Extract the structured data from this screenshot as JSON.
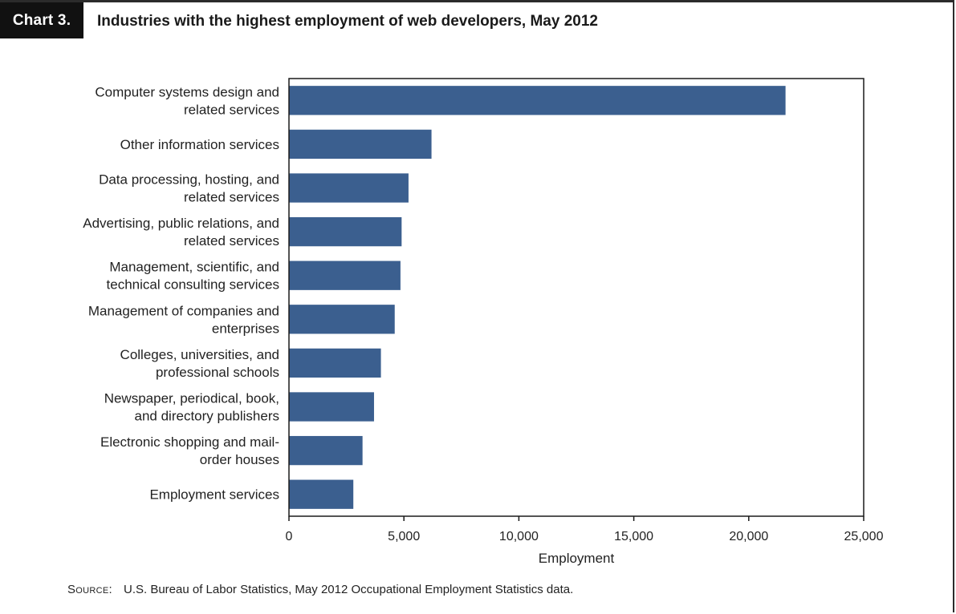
{
  "header": {
    "tag": "Chart 3.",
    "title": "Industries with the highest employment of web developers, May 2012"
  },
  "source": {
    "key": "Source:",
    "text": "U.S. Bureau of Labor Statistics, May 2012 Occupational Employment Statistics data."
  },
  "colors": {
    "bar": "#3b5f8f",
    "axis": "#1a1a1a"
  },
  "chart_data": {
    "type": "bar",
    "orientation": "horizontal",
    "title": "Industries with the highest employment of web developers, May 2012",
    "xlabel": "Employment",
    "ylabel": "",
    "xlim": [
      0,
      25000
    ],
    "xticks": [
      0,
      5000,
      10000,
      15000,
      20000,
      25000
    ],
    "xtick_labels": [
      "0",
      "5,000",
      "10,000",
      "15,000",
      "20,000",
      "25,000"
    ],
    "grid": false,
    "legend": "none",
    "categories": [
      [
        "Computer systems design and",
        "related services"
      ],
      [
        "Other information services"
      ],
      [
        "Data processing, hosting, and",
        "related services"
      ],
      [
        "Advertising, public relations, and",
        "related services"
      ],
      [
        "Management, scientific, and",
        "technical consulting services"
      ],
      [
        "Management of companies and",
        "enterprises"
      ],
      [
        "Colleges, universities, and",
        "professional schools"
      ],
      [
        "Newspaper, periodical, book,",
        "and directory publishers"
      ],
      [
        "Electronic shopping and mail-",
        "order houses"
      ],
      [
        "Employment services"
      ]
    ],
    "values": [
      21600,
      6200,
      5200,
      4900,
      4850,
      4600,
      4000,
      3700,
      3200,
      2800
    ]
  }
}
